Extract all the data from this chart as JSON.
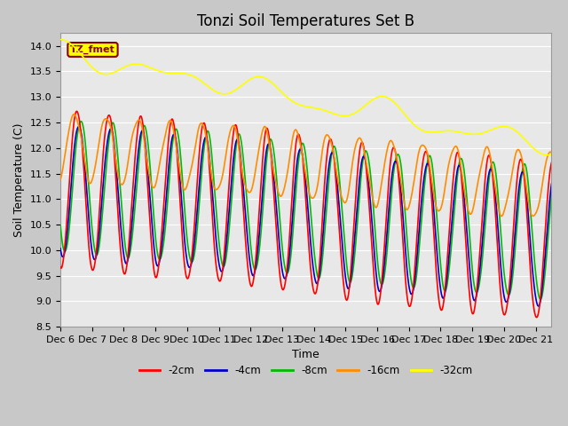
{
  "title": "Tonzi Soil Temperatures Set B",
  "xlabel": "Time",
  "ylabel": "Soil Temperature (C)",
  "ylim": [
    8.5,
    14.25
  ],
  "x_tick_labels": [
    "Dec 6",
    "Dec 7",
    "Dec 8",
    "Dec 9",
    "Dec 10",
    "Dec 11",
    "Dec 12",
    "Dec 13",
    "Dec 14",
    "Dec 15",
    "Dec 16",
    "Dec 17",
    "Dec 18",
    "Dec 19",
    "Dec 20",
    "Dec 21"
  ],
  "annotation_label": "TZ_fmet",
  "annotation_color": "#8B0000",
  "annotation_bg": "#FFFF00",
  "annotation_border": "#8B0000",
  "colors": {
    "-2cm": "#FF0000",
    "-4cm": "#0000CC",
    "-8cm": "#00BB00",
    "-16cm": "#FF8C00",
    "-32cm": "#FFFF00"
  },
  "legend_entries": [
    "-2cm",
    "-4cm",
    "-8cm",
    "-16cm",
    "-32cm"
  ],
  "fig_bg": "#C8C8C8",
  "plot_bg": "#E8E8E8",
  "grid_color": "#FFFFFF",
  "title_fontsize": 12,
  "label_fontsize": 9,
  "tick_fontsize": 8
}
